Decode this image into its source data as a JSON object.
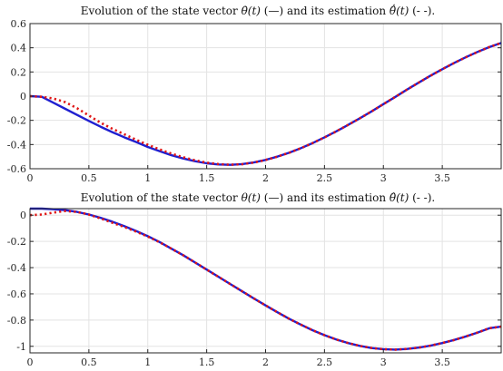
{
  "chart_data": [
    {
      "type": "line",
      "title_parts": {
        "prefix": "Evolution of the state vector ",
        "symbol": "θ̇(t)",
        "solid_note": " (—) and its estimation ",
        "est_symbol": "θ̂̇(t)",
        "dashed_note": " (- -)."
      },
      "xlim": [
        0,
        4
      ],
      "ylim": [
        -0.6,
        0.6
      ],
      "x_ticks": [
        0,
        0.5,
        1,
        1.5,
        2,
        2.5,
        3,
        3.5
      ],
      "y_ticks": [
        -0.6,
        -0.4,
        -0.2,
        0,
        0.2,
        0.4,
        0.6
      ],
      "grid": true,
      "series": [
        {
          "style": "solid",
          "color": "#1f1fd0",
          "x": [
            0,
            0.1,
            0.2,
            0.3,
            0.4,
            0.5,
            0.6,
            0.7,
            0.8,
            0.9,
            1.0,
            1.1,
            1.2,
            1.3,
            1.4,
            1.5,
            1.6,
            1.7,
            1.8,
            1.9,
            2.0,
            2.1,
            2.2,
            2.3,
            2.4,
            2.5,
            2.6,
            2.7,
            2.8,
            2.9,
            3.0,
            3.1,
            3.2,
            3.3,
            3.4,
            3.5,
            3.6,
            3.7,
            3.8,
            3.9,
            4.0
          ],
          "y": [
            0.0,
            -0.005,
            -0.055,
            -0.105,
            -0.155,
            -0.205,
            -0.253,
            -0.298,
            -0.34,
            -0.379,
            -0.42,
            -0.455,
            -0.488,
            -0.515,
            -0.538,
            -0.555,
            -0.565,
            -0.568,
            -0.562,
            -0.548,
            -0.527,
            -0.5,
            -0.468,
            -0.43,
            -0.388,
            -0.341,
            -0.291,
            -0.238,
            -0.183,
            -0.126,
            -0.066,
            -0.007,
            0.054,
            0.112,
            0.169,
            0.223,
            0.274,
            0.322,
            0.366,
            0.406,
            0.44
          ]
        },
        {
          "style": "dotted",
          "color": "#e01515",
          "x": [
            0,
            0.1,
            0.2,
            0.3,
            0.4,
            0.5,
            0.6,
            0.7,
            0.8,
            0.9,
            1.0,
            1.1,
            1.2,
            1.3,
            1.4,
            1.5,
            1.6,
            1.7,
            1.8,
            1.9,
            2.0,
            2.1,
            2.2,
            2.3,
            2.4,
            2.5,
            2.6,
            2.7,
            2.8,
            2.9,
            3.0,
            3.1,
            3.2,
            3.3,
            3.4,
            3.5,
            3.6,
            3.7,
            3.8,
            3.9,
            4.0
          ],
          "y": [
            0.0,
            -0.005,
            -0.02,
            -0.05,
            -0.1,
            -0.16,
            -0.22,
            -0.27,
            -0.315,
            -0.36,
            -0.402,
            -0.44,
            -0.475,
            -0.505,
            -0.53,
            -0.55,
            -0.562,
            -0.567,
            -0.563,
            -0.549,
            -0.528,
            -0.5,
            -0.468,
            -0.43,
            -0.388,
            -0.341,
            -0.291,
            -0.238,
            -0.183,
            -0.126,
            -0.066,
            -0.007,
            0.054,
            0.112,
            0.169,
            0.223,
            0.274,
            0.322,
            0.366,
            0.406,
            0.44
          ]
        }
      ]
    },
    {
      "type": "line",
      "title_parts": {
        "prefix": "Evolution of the state vector ",
        "symbol": "θ(t)",
        "solid_note": " (—) and its estimation ",
        "est_symbol": "θ̂(t)",
        "dashed_note": " (- -)."
      },
      "xlim": [
        0,
        4
      ],
      "ylim": [
        -1.05,
        0.05
      ],
      "x_ticks": [
        0,
        0.5,
        1,
        1.5,
        2,
        2.5,
        3,
        3.5
      ],
      "y_ticks": [
        -1,
        -0.8,
        -0.6,
        -0.4,
        -0.2,
        0
      ],
      "grid": true,
      "series": [
        {
          "style": "solid",
          "color": "#1f1fd0",
          "x": [
            0,
            0.1,
            0.2,
            0.3,
            0.4,
            0.5,
            0.6,
            0.7,
            0.8,
            0.9,
            1.0,
            1.1,
            1.2,
            1.3,
            1.4,
            1.5,
            1.6,
            1.7,
            1.8,
            1.9,
            2.0,
            2.1,
            2.2,
            2.3,
            2.4,
            2.5,
            2.6,
            2.7,
            2.8,
            2.9,
            3.0,
            3.1,
            3.2,
            3.3,
            3.4,
            3.5,
            3.6,
            3.7,
            3.8,
            3.9,
            4.0
          ],
          "y": [
            0.05,
            0.05,
            0.045,
            0.038,
            0.025,
            0.005,
            -0.02,
            -0.05,
            -0.083,
            -0.12,
            -0.16,
            -0.205,
            -0.255,
            -0.305,
            -0.36,
            -0.415,
            -0.47,
            -0.525,
            -0.58,
            -0.635,
            -0.688,
            -0.74,
            -0.79,
            -0.835,
            -0.878,
            -0.915,
            -0.948,
            -0.975,
            -0.997,
            -1.013,
            -1.022,
            -1.025,
            -1.02,
            -1.01,
            -0.995,
            -0.975,
            -0.952,
            -0.925,
            -0.895,
            -0.862,
            -0.85
          ]
        },
        {
          "style": "dotted",
          "color": "#e01515",
          "x": [
            0,
            0.1,
            0.2,
            0.3,
            0.4,
            0.5,
            0.6,
            0.7,
            0.8,
            0.9,
            1.0,
            1.1,
            1.2,
            1.3,
            1.4,
            1.5,
            1.6,
            1.7,
            1.8,
            1.9,
            2.0,
            2.1,
            2.2,
            2.3,
            2.4,
            2.5,
            2.6,
            2.7,
            2.8,
            2.9,
            3.0,
            3.1,
            3.2,
            3.3,
            3.4,
            3.5,
            3.6,
            3.7,
            3.8,
            3.9,
            4.0
          ],
          "y": [
            0.0,
            0.005,
            0.02,
            0.032,
            0.025,
            0.005,
            -0.025,
            -0.058,
            -0.09,
            -0.125,
            -0.163,
            -0.206,
            -0.255,
            -0.305,
            -0.36,
            -0.415,
            -0.47,
            -0.525,
            -0.58,
            -0.635,
            -0.688,
            -0.74,
            -0.79,
            -0.835,
            -0.878,
            -0.915,
            -0.948,
            -0.975,
            -0.997,
            -1.013,
            -1.022,
            -1.025,
            -1.02,
            -1.01,
            -0.995,
            -0.975,
            -0.952,
            -0.925,
            -0.895,
            -0.862,
            -0.85
          ]
        }
      ]
    }
  ]
}
